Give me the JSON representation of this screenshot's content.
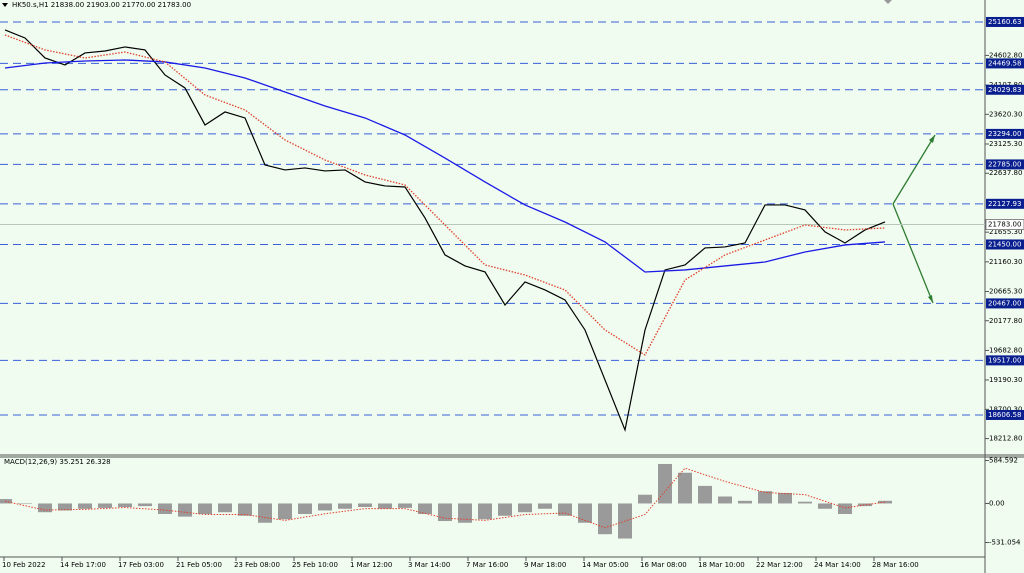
{
  "chart_data": [
    {
      "type": "line",
      "title": "HK50.s,H1  21838.00 21903.00 21770.00 21783.00",
      "ylim": [
        17939,
        25527
      ],
      "yticks": [
        {
          "value": 24602.8,
          "label": "24602.80"
        },
        {
          "value": 24107.8,
          "label": "24107.80"
        },
        {
          "value": 23620.3,
          "label": "23620.30"
        },
        {
          "value": 23125.3,
          "label": "23125.30"
        },
        {
          "value": 22637.8,
          "label": "22637.80"
        },
        {
          "value": 21655.3,
          "label": "21655.30"
        },
        {
          "value": 21160.3,
          "label": "21160.30"
        },
        {
          "value": 20665.3,
          "label": "20665.30"
        },
        {
          "value": 20177.8,
          "label": "20177.80"
        },
        {
          "value": 19682.8,
          "label": "19682.80"
        },
        {
          "value": 19190.3,
          "label": "19190.30"
        },
        {
          "value": 18700.3,
          "label": "18700.30"
        },
        {
          "value": 18212.8,
          "label": "18212.80"
        }
      ],
      "levels": [
        {
          "value": 25160.63,
          "label": "25160.63"
        },
        {
          "value": 24469.58,
          "label": "24469.58"
        },
        {
          "value": 24029.83,
          "label": "24029.83"
        },
        {
          "value": 23294,
          "label": "23294.00"
        },
        {
          "value": 22785,
          "label": "22785.00"
        },
        {
          "value": 22127.93,
          "label": "22127.93"
        },
        {
          "value": 21450,
          "label": "21450.00"
        },
        {
          "value": 20467,
          "label": "20467.00"
        },
        {
          "value": 19517,
          "label": "19517.00"
        },
        {
          "value": 18606.58,
          "label": "18606.58"
        }
      ],
      "level_color": "#3a5fd8",
      "current_price": {
        "value": 21783,
        "label": "21783.00"
      },
      "xtick_labels": [
        "10 Feb 2022",
        "14 Feb 17:00",
        "17 Feb 03:00",
        "21 Feb 05:00",
        "23 Feb 08:00",
        "25 Feb 10:00",
        "1 Mar 12:00",
        "3 Mar 14:00",
        "7 Mar 16:00",
        "9 Mar 18:00",
        "14 Mar 05:00",
        "16 Mar 08:00",
        "18 Mar 10:00",
        "22 Mar 12:00",
        "24 Mar 14:00",
        "28 Mar 16:00"
      ],
      "series": [
        {
          "color": "#000000",
          "style": "solid",
          "values": [
            25027,
            24894,
            24560,
            24443,
            24644,
            24677,
            24744,
            24694,
            24277,
            24060,
            23443,
            23660,
            23560,
            22776,
            22693,
            22726,
            22676,
            22693,
            22493,
            22426,
            22409,
            21892,
            21275,
            21092,
            20992,
            20441,
            20825,
            20692,
            20525,
            20024,
            19191,
            18357,
            20024,
            21025,
            21108,
            21392,
            21409,
            21475,
            22109,
            22109,
            22026,
            21659,
            21475,
            21692,
            21826
          ]
        },
        {
          "color": "#1a1ae6",
          "style": "solid",
          "values": [
            24393,
            24477,
            24510,
            24527,
            24494,
            24393,
            24227,
            23993,
            23760,
            23560,
            23276,
            22892,
            22492,
            22109,
            21825,
            21492,
            20991,
            21025,
            21092,
            21158,
            21325,
            21442,
            21492
          ]
        },
        {
          "color": "#e0402a",
          "style": "dotted",
          "values": [
            24944,
            24694,
            24560,
            24660,
            24494,
            23943,
            23693,
            23193,
            22859,
            22609,
            22442,
            21775,
            21108,
            20941,
            20691,
            20024,
            19607,
            20858,
            21275,
            21525,
            21775,
            21692,
            21725
          ]
        }
      ]
    },
    {
      "type": "bar",
      "title": "MACD(12,26,9) 35.251 26.328",
      "ylim": [
        -728,
        632
      ],
      "yticks": [
        {
          "value": 584.592,
          "label": "584.592"
        },
        {
          "value": 0,
          "label": "0.00"
        },
        {
          "value": -531.054,
          "label": "-531.054"
        }
      ],
      "color": "#9a9a9a",
      "values": [
        60,
        0,
        -119,
        -95,
        -72,
        -60,
        -48,
        -36,
        -143,
        -179,
        -143,
        -119,
        -167,
        -262,
        -215,
        -143,
        -95,
        -72,
        -48,
        -72,
        -60,
        -143,
        -239,
        -262,
        -215,
        -167,
        -119,
        -72,
        -167,
        -262,
        -418,
        -477,
        119,
        537,
        418,
        239,
        95,
        36,
        167,
        143,
        24,
        -72,
        -143,
        -36,
        36
      ],
      "signal": {
        "color": "#e0402a",
        "values": [
          30,
          -90,
          -80,
          -55,
          -90,
          -150,
          -150,
          -230,
          -140,
          -70,
          -70,
          -200,
          -230,
          -150,
          -130,
          -330,
          -150,
          480,
          300,
          150,
          120,
          -60,
          20
        ]
      }
    }
  ]
}
